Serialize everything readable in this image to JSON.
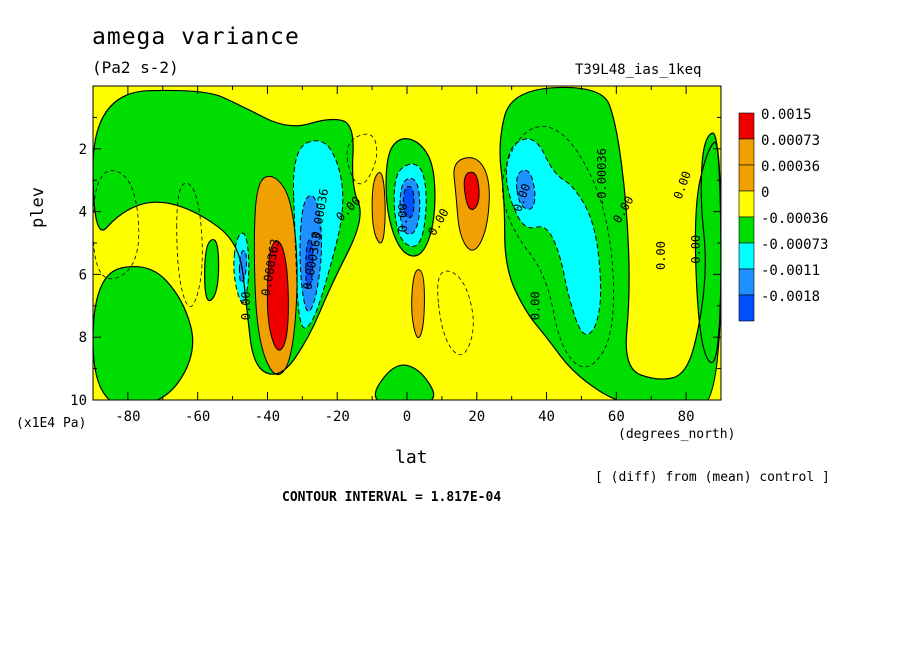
{
  "chart_data": {
    "type": "heatmap",
    "title": "amega variance",
    "subtitle": "(Pa2 s-2)",
    "run_label": "T39L48_ias_1keq",
    "xlabel": "lat",
    "x_units": "(degrees_north)",
    "ylabel": "plev",
    "y_units": "(x1E4 Pa)",
    "xlim": [
      -90,
      90
    ],
    "ylim": [
      10,
      0
    ],
    "x_ticks": [
      -80,
      -60,
      -40,
      -20,
      0,
      20,
      40,
      60,
      80
    ],
    "x_tick_labels": [
      "-80",
      "-60",
      "-40",
      "-20",
      "0",
      "20",
      "40",
      "60",
      "80"
    ],
    "y_ticks": [
      2,
      4,
      6,
      8,
      10
    ],
    "y_tick_labels": [
      "2",
      "4",
      "6",
      "8",
      "10"
    ],
    "legend": {
      "labels": [
        "0.0015",
        "0.00073",
        "0.00036",
        "0",
        "-0.00036",
        "-0.00073",
        "-0.0011",
        "-0.0018"
      ],
      "colors": [
        "#ee0000",
        "#f0a000",
        "#f0a000",
        "#ffff00",
        "#00dd00",
        "#00ffff",
        "#1e90ff",
        "#0050ff"
      ]
    },
    "fill_colors": {
      "strong_pos": "#ee0000",
      "pos": "#f0a000",
      "weak_pos": "#ffff00",
      "weak_neg": "#00dd00",
      "neg": "#00ffff",
      "mid_neg": "#1e90ff",
      "strong_neg": "#0050ff"
    },
    "features": [
      {
        "lat": -37,
        "plev": 6.5,
        "value": 0.0015
      },
      {
        "lat": -28,
        "plev": 5.0,
        "value": -0.0013
      },
      {
        "lat": -47,
        "plev": 5.5,
        "value": -0.00073
      },
      {
        "lat": -8,
        "plev": 4.0,
        "value": 0.00036
      },
      {
        "lat": 1,
        "plev": 3.8,
        "value": -0.0018
      },
      {
        "lat": 3,
        "plev": 7.0,
        "value": 0.00036
      },
      {
        "lat": 18,
        "plev": 3.5,
        "value": 0.0015
      },
      {
        "lat": 33,
        "plev": 3.5,
        "value": -0.0011
      },
      {
        "lat": 48,
        "plev": 5.5,
        "value": -0.00073
      }
    ],
    "contour_labels": [
      "0.000363",
      "0.00",
      "-0.00036",
      "0.000363",
      "0.00",
      "0.00",
      "0.00",
      "0.00",
      "-0.00036",
      "0.00",
      "0.00",
      "0.00",
      "0.00",
      "0.00"
    ]
  },
  "footer": {
    "note": "[ (diff) from (mean) control ]",
    "contour_interval": "CONTOUR INTERVAL = 1.817E-04"
  }
}
